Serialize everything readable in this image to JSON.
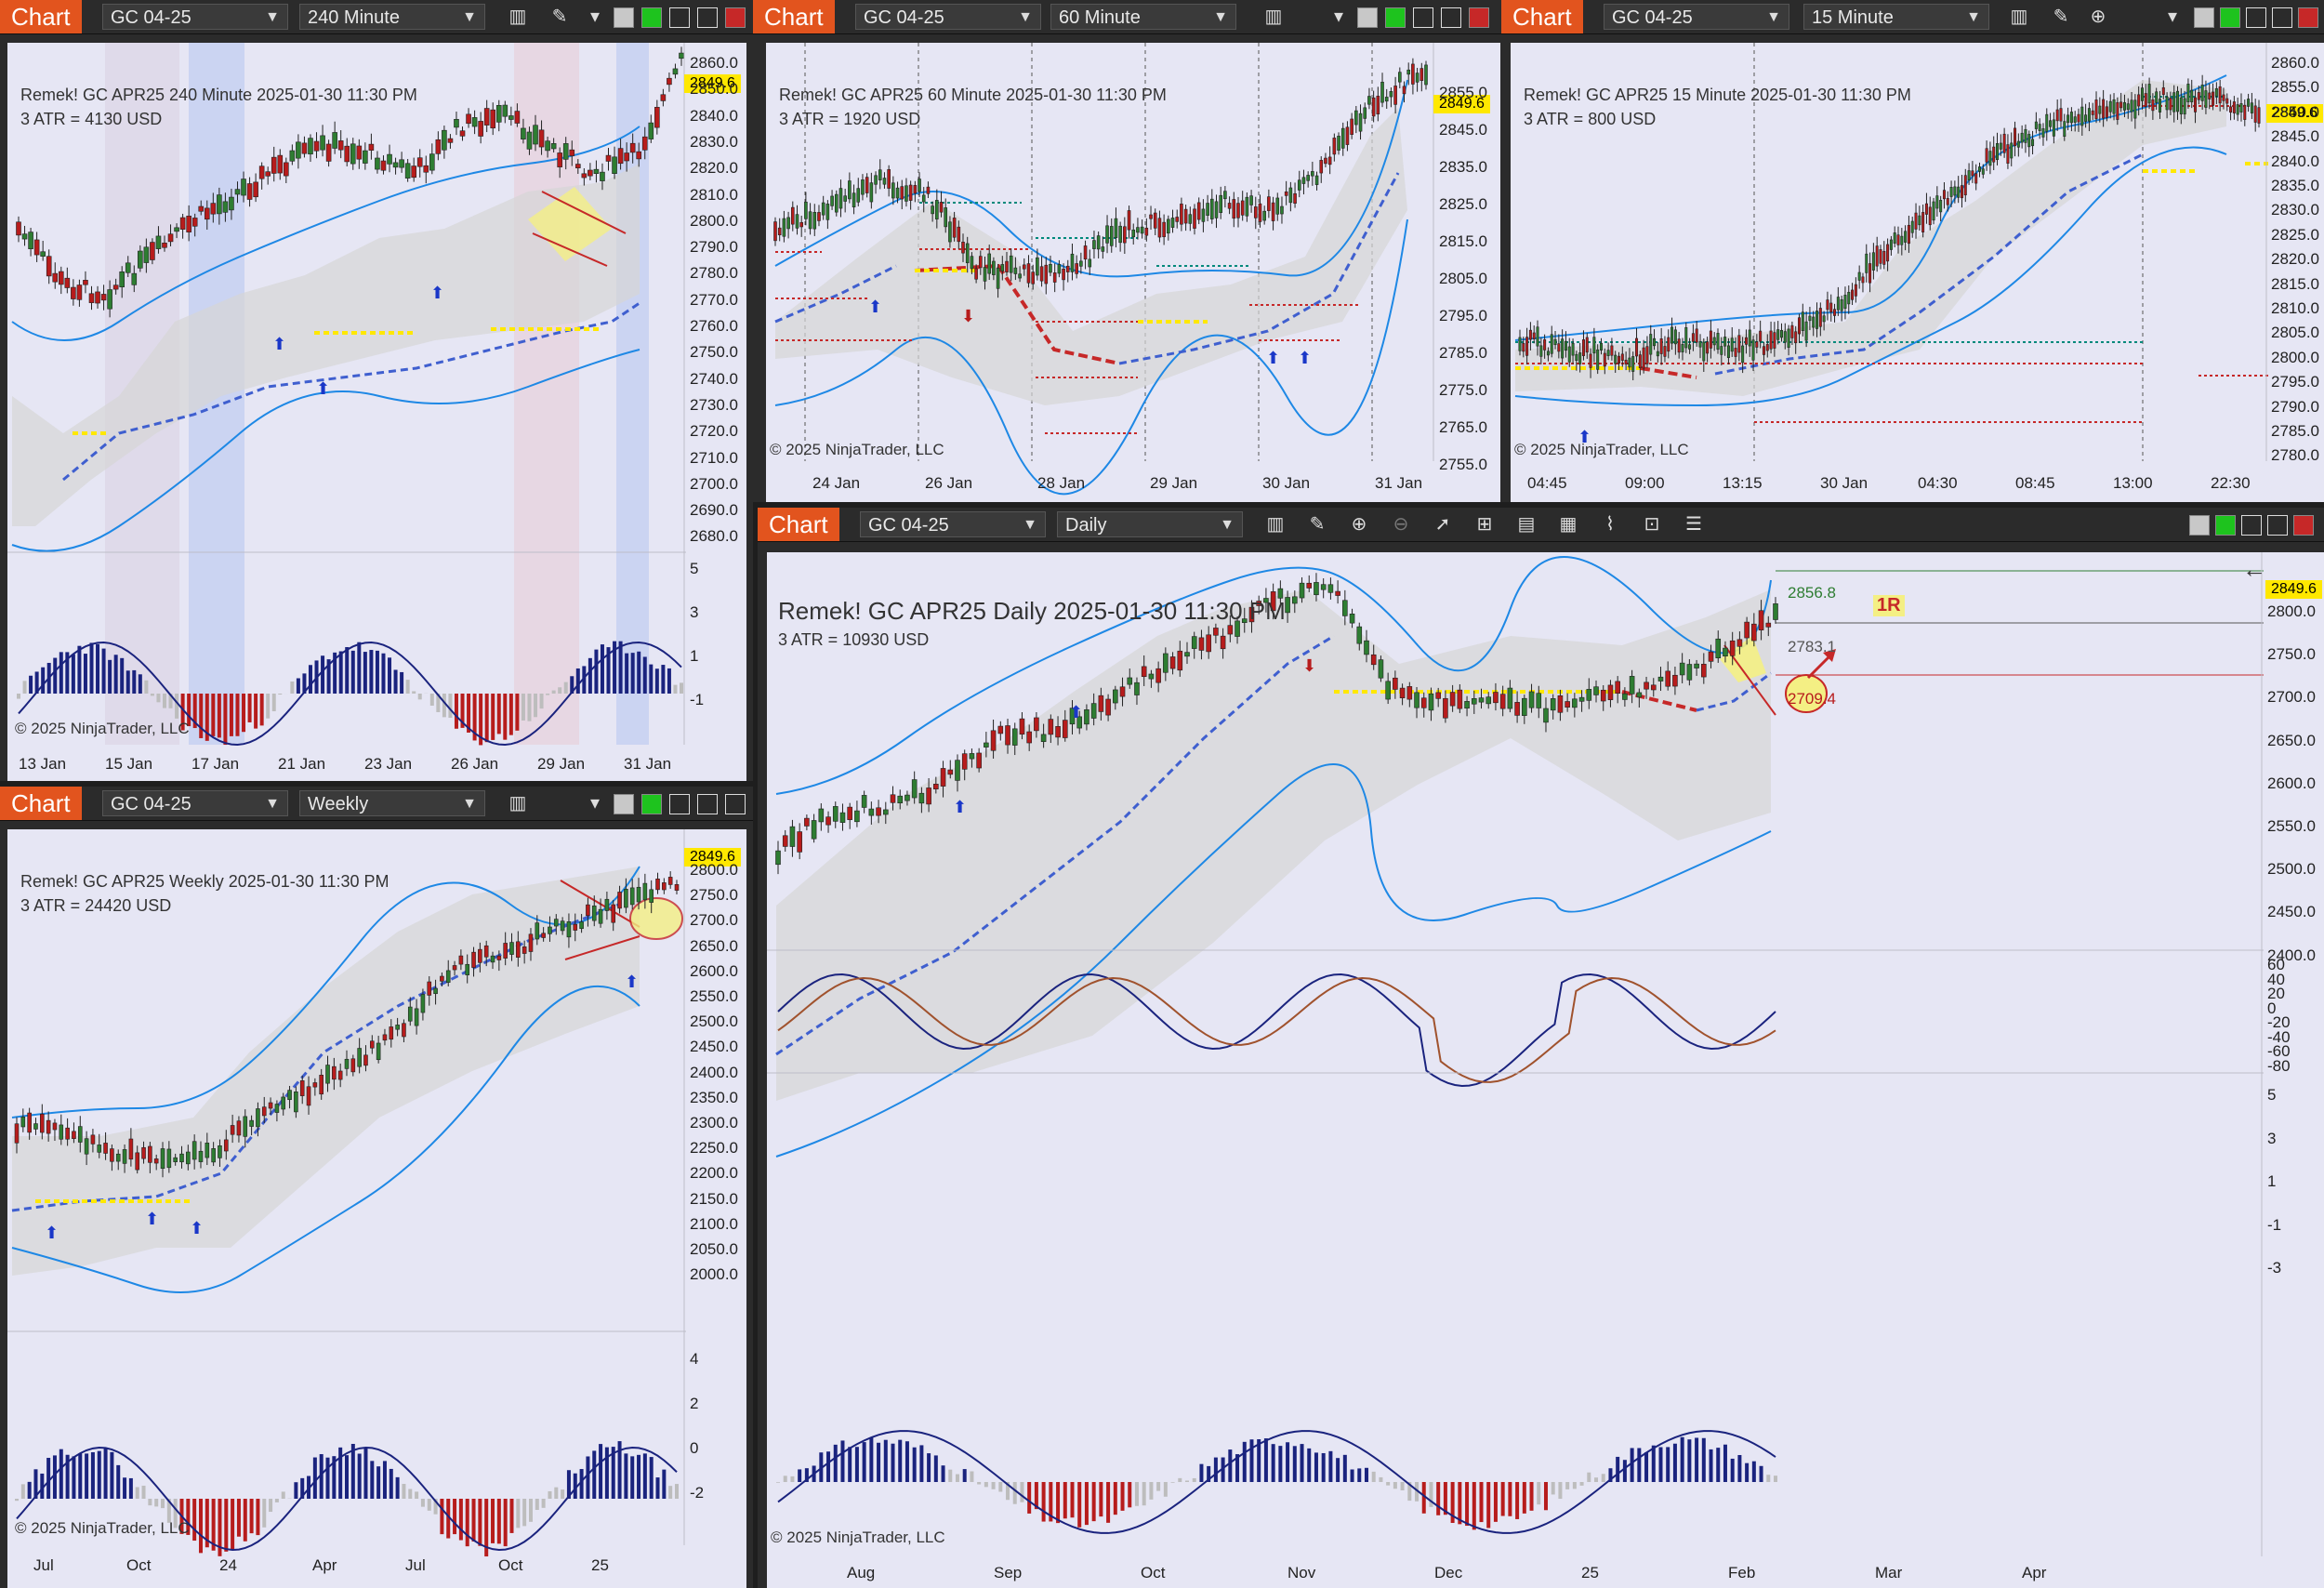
{
  "common": {
    "tab_label": "Chart",
    "instrument": "GC 04-25",
    "copyright": "© 2025 NinjaTrader, LLC",
    "price_badge": "2849.6"
  },
  "panels": {
    "p240": {
      "interval": "240 Minute",
      "title": "Remek!  GC APR25  240 Minute  2025-01-30 11:30 PM",
      "atr": "3 ATR = 4130 USD",
      "price_ticks": [
        "2860.0",
        "2850.0",
        "2840.0",
        "2830.0",
        "2820.0",
        "2810.0",
        "2800.0",
        "2790.0",
        "2780.0",
        "2770.0",
        "2760.0",
        "2750.0",
        "2740.0",
        "2730.0",
        "2720.0",
        "2710.0",
        "2700.0",
        "2690.0",
        "2680.0"
      ],
      "osc_ticks": [
        "5",
        "3",
        "1",
        "-1"
      ],
      "time_ticks": [
        "13 Jan",
        "15 Jan",
        "17 Jan",
        "21 Jan",
        "23 Jan",
        "26 Jan",
        "29 Jan",
        "31 Jan"
      ]
    },
    "p60": {
      "interval": "60 Minute",
      "title": "Remek!  GC APR25  60 Minute  2025-01-30 11:30 PM",
      "atr": "3 ATR = 1920 USD",
      "price_ticks": [
        "2855.0",
        "2845.0",
        "2835.0",
        "2825.0",
        "2815.0",
        "2805.0",
        "2795.0",
        "2785.0",
        "2775.0",
        "2765.0",
        "2755.0"
      ],
      "time_ticks": [
        "24 Jan",
        "26 Jan",
        "28 Jan",
        "29 Jan",
        "30 Jan",
        "31 Jan"
      ]
    },
    "p15": {
      "interval": "15 Minute",
      "title": "Remek!  GC APR25  15 Minute  2025-01-30 11:30 PM",
      "atr": "3 ATR = 800 USD",
      "price_ticks": [
        "2860.0",
        "2855.0",
        "2850.0",
        "2845.0",
        "2840.0",
        "2835.0",
        "2830.0",
        "2825.0",
        "2820.0",
        "2815.0",
        "2810.0",
        "2805.0",
        "2800.0",
        "2795.0",
        "2790.0",
        "2785.0",
        "2780.0"
      ],
      "time_ticks": [
        "04:45",
        "09:00",
        "13:15",
        "30 Jan",
        "04:30",
        "08:45",
        "13:00",
        "22:30"
      ]
    },
    "pweekly": {
      "interval": "Weekly",
      "title": "Remek!  GC APR25  Weekly  2025-01-30 11:30 PM",
      "atr": "3 ATR = 24420 USD",
      "price_ticks": [
        "2800.0",
        "2750.0",
        "2700.0",
        "2650.0",
        "2600.0",
        "2550.0",
        "2500.0",
        "2450.0",
        "2400.0",
        "2350.0",
        "2300.0",
        "2250.0",
        "2200.0",
        "2150.0",
        "2100.0",
        "2050.0",
        "2000.0"
      ],
      "osc_ticks": [
        "4",
        "2",
        "0",
        "-2"
      ],
      "time_ticks": [
        "Jul",
        "Oct",
        "24",
        "Apr",
        "Jul",
        "Oct",
        "25"
      ]
    },
    "pdaily": {
      "interval": "Daily",
      "title": "Remek!  GC APR25  Daily  2025-01-30 11:30 PM",
      "atr": "3 ATR = 10930 USD",
      "target_label": "2856.8",
      "mid_label": "2783.1",
      "stop_label": "2709.4",
      "r_label": "1R",
      "price_ticks": [
        "2800.0",
        "2750.0",
        "2700.0",
        "2650.0",
        "2600.0",
        "2550.0",
        "2500.0",
        "2450.0",
        "2400.0"
      ],
      "osc1_ticks": [
        "60",
        "40",
        "20",
        "0",
        "-20",
        "-40",
        "-60",
        "-80"
      ],
      "osc2_ticks": [
        "5",
        "3",
        "1",
        "-1",
        "-3"
      ],
      "time_ticks": [
        "Aug",
        "Sep",
        "Oct",
        "Nov",
        "Dec",
        "25",
        "Feb",
        "Mar",
        "Apr"
      ]
    }
  },
  "colors": {
    "accent_tab": "#e2541e",
    "plot_bg": "#e6e6f4",
    "bull": "#2e7d32",
    "bear": "#b71c1c",
    "band": "#1e88e5",
    "trail": "#3f51b5",
    "support": "#f5e400",
    "badge": "#ffe800"
  }
}
